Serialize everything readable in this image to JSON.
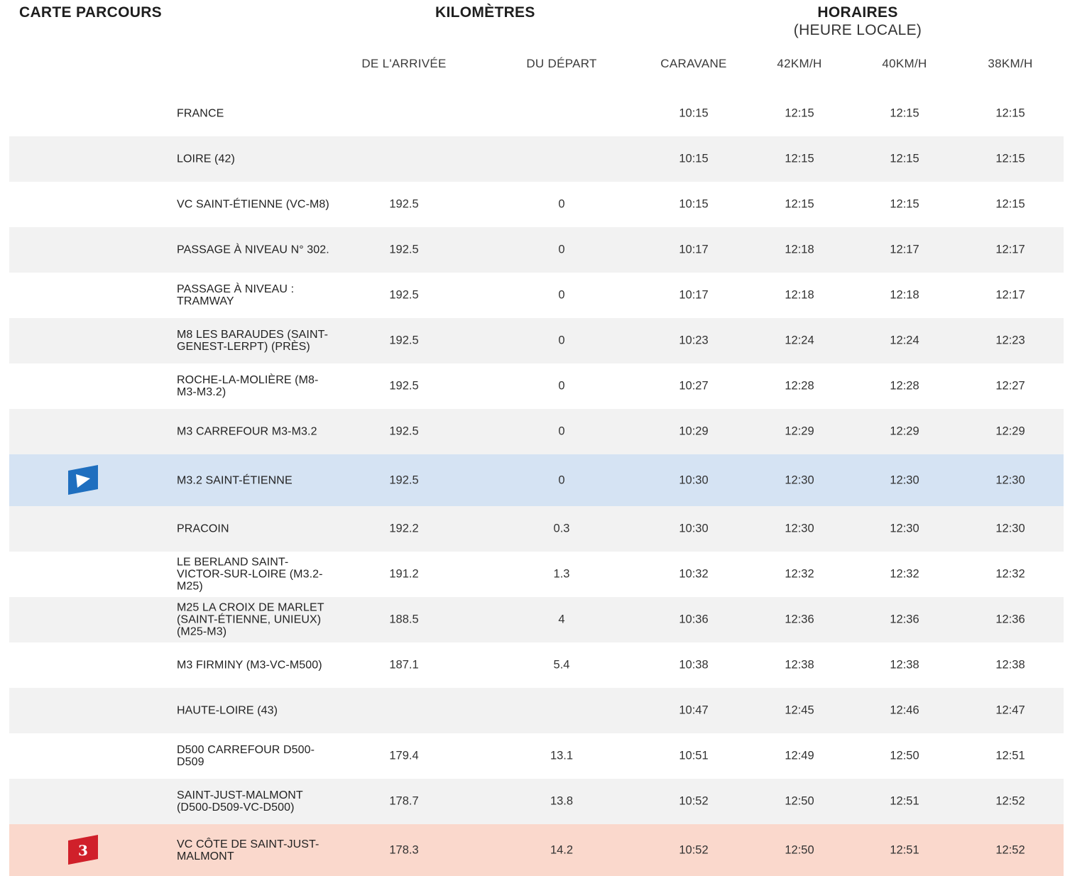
{
  "header": {
    "map_title": "CARTE PARCOURS",
    "km_title": "KILOMÈTRES",
    "times_title": "HORAIRES",
    "times_subtitle": "(HEURE LOCALE)",
    "columns": {
      "arrival": "DE L'ARRIVÉE",
      "departure": "DU DÉPART",
      "caravan": "CARAVANE",
      "speed42": "42KM/H",
      "speed40": "40KM/H",
      "speed38": "38KM/H"
    }
  },
  "rows": [
    {
      "location": "FRANCE",
      "arrival": "",
      "departure": "",
      "caravan": "10:15",
      "s42": "12:15",
      "s40": "12:15",
      "s38": "12:15"
    },
    {
      "location": "LOIRE (42)",
      "arrival": "",
      "departure": "",
      "caravan": "10:15",
      "s42": "12:15",
      "s40": "12:15",
      "s38": "12:15"
    },
    {
      "location": "VC SAINT-ÉTIENNE (VC-M8)",
      "arrival": "192.5",
      "departure": "0",
      "caravan": "10:15",
      "s42": "12:15",
      "s40": "12:15",
      "s38": "12:15"
    },
    {
      "location": "PASSAGE À NIVEAU N° 302.",
      "arrival": "192.5",
      "departure": "0",
      "caravan": "10:17",
      "s42": "12:18",
      "s40": "12:17",
      "s38": "12:17"
    },
    {
      "location": "PASSAGE À NIVEAU : TRAMWAY",
      "arrival": "192.5",
      "departure": "0",
      "caravan": "10:17",
      "s42": "12:18",
      "s40": "12:18",
      "s38": "12:17"
    },
    {
      "location": "M8 LES BARAUDES (SAINT-GENEST-LERPT) (PRÈS)",
      "arrival": "192.5",
      "departure": "0",
      "caravan": "10:23",
      "s42": "12:24",
      "s40": "12:24",
      "s38": "12:23"
    },
    {
      "location": "ROCHE-LA-MOLIÈRE (M8-M3-M3.2)",
      "arrival": "192.5",
      "departure": "0",
      "caravan": "10:27",
      "s42": "12:28",
      "s40": "12:28",
      "s38": "12:27"
    },
    {
      "location": "M3 CARREFOUR M3-M3.2",
      "arrival": "192.5",
      "departure": "0",
      "caravan": "10:29",
      "s42": "12:29",
      "s40": "12:29",
      "s38": "12:29"
    },
    {
      "location": "M3.2 SAINT-ÉTIENNE",
      "arrival": "192.5",
      "departure": "0",
      "caravan": "10:30",
      "s42": "12:30",
      "s40": "12:30",
      "s38": "12:30",
      "marker": "start-flag-icon"
    },
    {
      "location": "PRACOIN",
      "arrival": "192.2",
      "departure": "0.3",
      "caravan": "10:30",
      "s42": "12:30",
      "s40": "12:30",
      "s38": "12:30"
    },
    {
      "location": "LE BERLAND SAINT-VICTOR-SUR-LOIRE (M3.2-M25)",
      "arrival": "191.2",
      "departure": "1.3",
      "caravan": "10:32",
      "s42": "12:32",
      "s40": "12:32",
      "s38": "12:32"
    },
    {
      "location": "M25 LA CROIX DE MARLET (SAINT-ÉTIENNE, UNIEUX) (M25-M3)",
      "arrival": "188.5",
      "departure": "4",
      "caravan": "10:36",
      "s42": "12:36",
      "s40": "12:36",
      "s38": "12:36"
    },
    {
      "location": "M3 FIRMINY (M3-VC-M500)",
      "arrival": "187.1",
      "departure": "5.4",
      "caravan": "10:38",
      "s42": "12:38",
      "s40": "12:38",
      "s38": "12:38"
    },
    {
      "location": "HAUTE-LOIRE (43)",
      "arrival": "",
      "departure": "",
      "caravan": "10:47",
      "s42": "12:45",
      "s40": "12:46",
      "s38": "12:47"
    },
    {
      "location": "D500 CARREFOUR D500-D509",
      "arrival": "179.4",
      "departure": "13.1",
      "caravan": "10:51",
      "s42": "12:49",
      "s40": "12:50",
      "s38": "12:51"
    },
    {
      "location": "SAINT-JUST-MALMONT (D500-D509-VC-D500)",
      "arrival": "178.7",
      "departure": "13.8",
      "caravan": "10:52",
      "s42": "12:50",
      "s40": "12:51",
      "s38": "12:52"
    },
    {
      "location": "VC CÔTE DE SAINT-JUST-MALMONT",
      "arrival": "178.3",
      "departure": "14.2",
      "caravan": "10:52",
      "s42": "12:50",
      "s40": "12:51",
      "s38": "12:52",
      "marker": "climb-category-3-flag-icon",
      "marker_label": "3"
    }
  ],
  "colors": {
    "start_row_bg": "#d5e3f3",
    "climb_row_bg": "#fad8cc",
    "zebra_bg": "#f2f2f2",
    "start_flag": "#1f6fbf",
    "climb_flag": "#d0202a"
  }
}
